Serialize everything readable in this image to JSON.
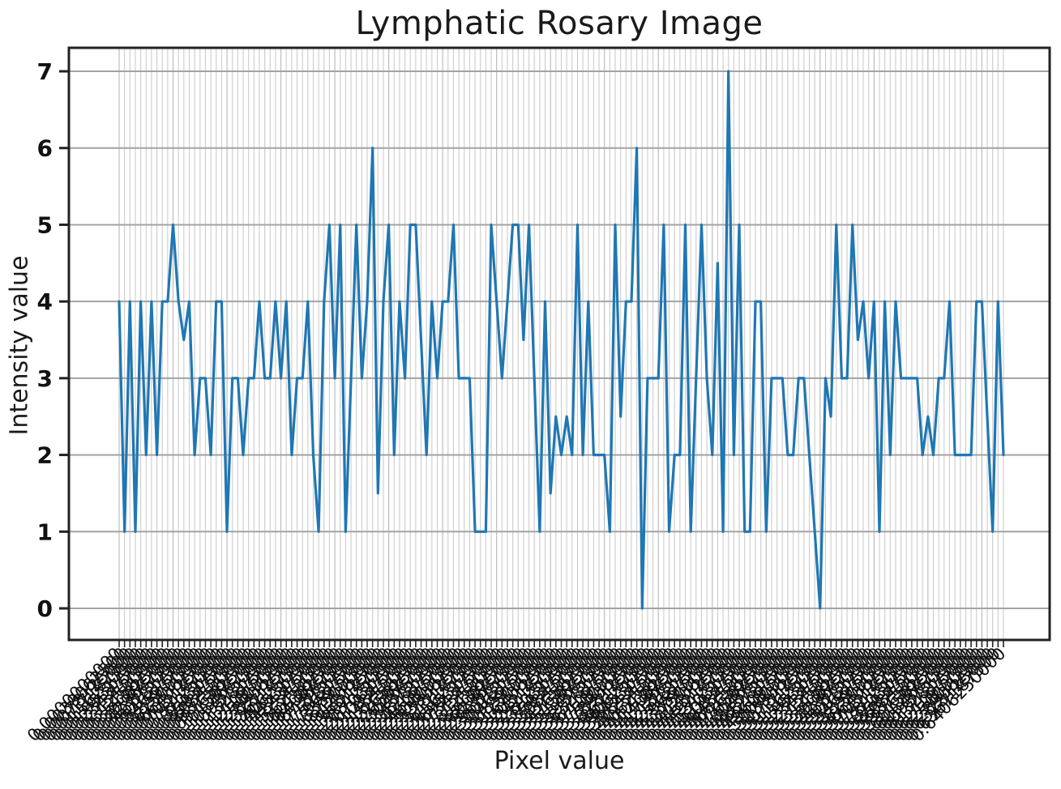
{
  "title": "Lymphatic Rosary Image",
  "x_axis": {
    "label": "Pixel value",
    "tick_labels_legible": false,
    "tick_label_style": "one rotated numeric label per data point; labels overlap heavily and form an illegible dark band below the axis"
  },
  "y_axis": {
    "label": "Intensity value",
    "ticks": [
      "0",
      "1",
      "2",
      "3",
      "4",
      "5",
      "6",
      "7"
    ]
  },
  "colors": {
    "line": "#1f77b4",
    "minor_grid": "#cccccc",
    "minor_grid_dark": "#b8b8b8",
    "major_grid": "#a3a3a3",
    "spine": "#222222",
    "text": "#111111",
    "background": "#ffffff"
  },
  "chart_data": {
    "type": "line",
    "title": "Lymphatic Rosary Image",
    "xlabel": "Pixel value",
    "ylabel": "Intensity value",
    "ylim": [
      -0.35,
      7.35
    ],
    "yticks": [
      0,
      1,
      2,
      3,
      4,
      5,
      6,
      7
    ],
    "grid": true,
    "legend": false,
    "x_description": "165 evenly spaced pixel-value bins; x tick labels are illegible (dense overlapping rotated text), values estimated from gridlines",
    "series": [
      {
        "name": "intensity",
        "color": "#1f77b4",
        "values": [
          4,
          1,
          4,
          1,
          4,
          2,
          4,
          2,
          4,
          4,
          5,
          4,
          3.5,
          4,
          2,
          3,
          3,
          2,
          4,
          4,
          1,
          3,
          3,
          2,
          3,
          3,
          4,
          3,
          3,
          4,
          3,
          4,
          2,
          3,
          3,
          4,
          2,
          1,
          4,
          5,
          3,
          5,
          1,
          3,
          5,
          3,
          4,
          6,
          1.5,
          4,
          5,
          2,
          4,
          3,
          5,
          5,
          3.5,
          2,
          4,
          3,
          4,
          4,
          5,
          3,
          3,
          3,
          1,
          1,
          1,
          5,
          4,
          3,
          4,
          5,
          5,
          3.5,
          5,
          3,
          1,
          4,
          1.5,
          2.5,
          2,
          2.5,
          2,
          5,
          2,
          4,
          2,
          2,
          2,
          1,
          5,
          2.5,
          4,
          4,
          6,
          0,
          3,
          3,
          3,
          5,
          1,
          2,
          2,
          5,
          1,
          3,
          5,
          3,
          2,
          4.5,
          1,
          7,
          2,
          5,
          1,
          1,
          4,
          4,
          1,
          3,
          3,
          3,
          2,
          2,
          3,
          3,
          2,
          1,
          0,
          3,
          2.5,
          5,
          3,
          3,
          5,
          3.5,
          4,
          3,
          4,
          1,
          4,
          2,
          4,
          3,
          3,
          3,
          3,
          2,
          2.5,
          2,
          3,
          3,
          4,
          2,
          2,
          2,
          2,
          4,
          4,
          2.5,
          1,
          4,
          2
        ]
      }
    ]
  }
}
